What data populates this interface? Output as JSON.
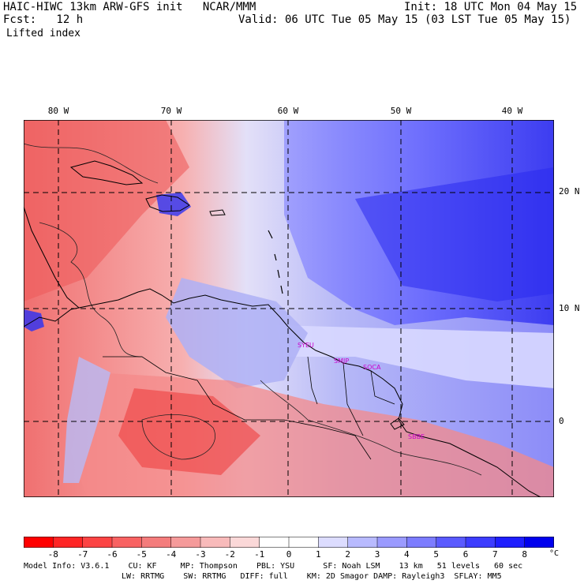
{
  "header": {
    "title": "HAIC-HIWC 13km ARW-GFS init   NCAR/MMM",
    "fcst": "Fcst:   12 h",
    "init": "Init: 18 UTC Mon 04 May 15",
    "valid": "Valid: 06 UTC Tue 05 May 15 (03 LST Tue 05 May 15)",
    "field": "Lifted index"
  },
  "axes": {
    "lon_labels": [
      "80 W",
      "70 W",
      "60 W",
      "50 W",
      "40 W"
    ],
    "lat_labels": [
      "20 N",
      "10 N",
      "0"
    ]
  },
  "stations": [
    "SYEU",
    "SMJP",
    "SOCA",
    "SBBE"
  ],
  "colorbar": {
    "ticks": [
      "-8",
      "-7",
      "-6",
      "-5",
      "-4",
      "-3",
      "-2",
      "-1",
      "0",
      "1",
      "2",
      "3",
      "4",
      "5",
      "6",
      "7",
      "8"
    ],
    "unit": "°C",
    "colors": [
      "#ff0000",
      "#ff2525",
      "#fc4444",
      "#f86262",
      "#f47c7c",
      "#f59a9a",
      "#f8baba",
      "#fbd8d8",
      "#ffffff",
      "#ffffff",
      "#dcdcff",
      "#b8baff",
      "#9a9aff",
      "#7c7cff",
      "#5a5aff",
      "#3c3cff",
      "#1e1eff",
      "#0000ee"
    ]
  },
  "footer": {
    "line1": "Model Info: V3.6.1    CU: KF     MP: Thompson    PBL: YSU      SF: Noah LSM    13 km   51 levels   60 sec",
    "line2": "LW: RRTMG    SW: RRTMG   DIFF: full    KM: 2D Smagor DAMP: Rayleigh3  SFLAY: MM5"
  }
}
